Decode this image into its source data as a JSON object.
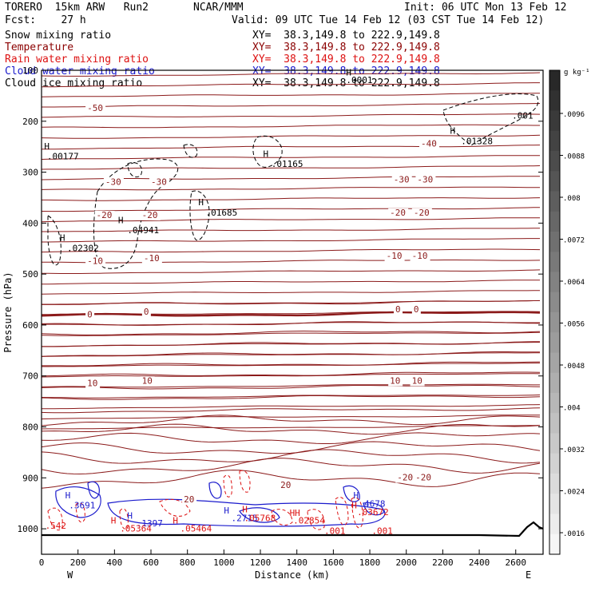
{
  "header": {
    "model": "TORERO  15km ARW   Run2",
    "org": "NCAR/MMM",
    "init": "Init: 06 UTC Mon 13 Feb 12",
    "fcst": "Fcst:    27 h",
    "valid": "Valid: 09 UTC Tue 14 Feb 12 (03 CST Tue 14 Feb 12)"
  },
  "legend": [
    {
      "name": "Snow mixing ratio",
      "color": "#000000",
      "xy": "XY=  38.3,149.8 to 222.9,149.8"
    },
    {
      "name": "Temperature",
      "color": "#8b0000",
      "xy": "XY=  38.3,149.8 to 222.9,149.8"
    },
    {
      "name": "Rain water mixing ratio",
      "color": "#dd1111",
      "xy": "XY=  38.3,149.8 to 222.9,149.8"
    },
    {
      "name": "Cloud water mixing ratio",
      "color": "#1a1acc",
      "xy": "XY=  38.3,149.8 to 222.9,149.8"
    },
    {
      "name": "Cloud ice mixing ratio",
      "color": "#000000",
      "xy": "XY=  38.3,149.8 to 222.9,149.8"
    }
  ],
  "chart_data": {
    "type": "contour-cross-section",
    "xlabel": "Distance (km)",
    "ylabel": "Pressure (hPa)",
    "xlim": [
      0,
      2750
    ],
    "ylim": [
      1050,
      100
    ],
    "x_ticks": [
      0,
      200,
      400,
      600,
      800,
      1000,
      1200,
      1400,
      1600,
      1800,
      2000,
      2200,
      2400,
      2600
    ],
    "y_ticks": [
      200,
      300,
      400,
      500,
      600,
      700,
      800,
      900,
      1000
    ],
    "y_tick_top": "100",
    "x_end_labels": {
      "left": "W",
      "right": "E"
    },
    "colorbar": {
      "unit": "g kg⁻¹",
      "ticks": [
        ".0096",
        ".0088",
        ".008",
        ".0072",
        ".0064",
        ".0056",
        ".0048",
        ".004",
        ".0032",
        ".0024",
        ".0016"
      ]
    },
    "temperature_labels": [
      {
        "text": "-50",
        "x": 250,
        "p": 180
      },
      {
        "text": "-40",
        "x": 2080,
        "p": 250
      },
      {
        "text": "-30",
        "x": 350,
        "p": 325
      },
      {
        "text": "-30",
        "x": 600,
        "p": 325
      },
      {
        "text": "-30",
        "x": 1930,
        "p": 320
      },
      {
        "text": "-30",
        "x": 2060,
        "p": 320
      },
      {
        "text": "-20",
        "x": 300,
        "p": 390
      },
      {
        "text": "-20",
        "x": 550,
        "p": 390
      },
      {
        "text": "-20",
        "x": 1910,
        "p": 385
      },
      {
        "text": "-20",
        "x": 2040,
        "p": 385
      },
      {
        "text": "-10",
        "x": 250,
        "p": 480
      },
      {
        "text": "-10",
        "x": 560,
        "p": 475
      },
      {
        "text": "-10",
        "x": 1890,
        "p": 470
      },
      {
        "text": "-10",
        "x": 2030,
        "p": 470
      },
      {
        "text": "0",
        "x": 250,
        "p": 585
      },
      {
        "text": "0",
        "x": 560,
        "p": 580
      },
      {
        "text": "0",
        "x": 1940,
        "p": 575
      },
      {
        "text": "0",
        "x": 2040,
        "p": 575
      },
      {
        "text": "10",
        "x": 250,
        "p": 720
      },
      {
        "text": "10",
        "x": 550,
        "p": 715
      },
      {
        "text": "10",
        "x": 1910,
        "p": 715
      },
      {
        "text": "10",
        "x": 2030,
        "p": 715
      },
      {
        "text": "20",
        "x": 780,
        "p": 948
      },
      {
        "text": "20",
        "x": 1310,
        "p": 920
      },
      {
        "text": "-20",
        "x": 1950,
        "p": 905
      },
      {
        "text": "-20",
        "x": 2050,
        "p": 905
      }
    ],
    "maxima_labels": [
      {
        "text": "H",
        "x": 15,
        "p": 255,
        "color": "#000000"
      },
      {
        "text": ".00177",
        "x": 30,
        "p": 275,
        "color": "#000000"
      },
      {
        "text": "H",
        "x": 1215,
        "p": 270,
        "color": "#000000"
      },
      {
        "text": ".01165",
        "x": 1260,
        "p": 290,
        "color": "#000000"
      },
      {
        "text": "H",
        "x": 2240,
        "p": 225,
        "color": "#000000"
      },
      {
        "text": ".01328",
        "x": 2300,
        "p": 245,
        "color": "#000000"
      },
      {
        "text": ".001",
        "x": 2580,
        "p": 195,
        "color": "#000000"
      },
      {
        "text": "H",
        "x": 1670,
        "p": 110,
        "color": "#000000"
      },
      {
        "text": ".0001",
        "x": 1670,
        "p": 125,
        "color": "#000000"
      },
      {
        "text": "H",
        "x": 420,
        "p": 400,
        "color": "#000000"
      },
      {
        "text": ".04941",
        "x": 470,
        "p": 420,
        "color": "#000000"
      },
      {
        "text": "H",
        "x": 860,
        "p": 365,
        "color": "#000000"
      },
      {
        "text": ".01685",
        "x": 900,
        "p": 385,
        "color": "#000000"
      },
      {
        "text": "H",
        "x": 100,
        "p": 435,
        "color": "#000000"
      },
      {
        "text": ".02302",
        "x": 140,
        "p": 455,
        "color": "#000000"
      },
      {
        "text": "H",
        "x": 130,
        "p": 940,
        "color": "#1a1acc"
      },
      {
        "text": ".3691",
        "x": 150,
        "p": 960,
        "color": "#1a1acc"
      },
      {
        "text": "H",
        "x": 470,
        "p": 980,
        "color": "#1a1acc"
      },
      {
        "text": ".1397",
        "x": 520,
        "p": 995,
        "color": "#1a1acc"
      },
      {
        "text": "H",
        "x": 1000,
        "p": 970,
        "color": "#1a1acc"
      },
      {
        "text": ".2715",
        "x": 1040,
        "p": 985,
        "color": "#1a1acc"
      },
      {
        "text": "H",
        "x": 1710,
        "p": 940,
        "color": "#1a1acc"
      },
      {
        "text": ".4678",
        "x": 1740,
        "p": 957,
        "color": "#1a1acc"
      },
      {
        "text": ".542",
        "x": 20,
        "p": 1000,
        "color": "#dd1111"
      },
      {
        "text": "H",
        "x": 380,
        "p": 990,
        "color": "#dd1111"
      },
      {
        "text": ".05364",
        "x": 430,
        "p": 1005,
        "color": "#dd1111"
      },
      {
        "text": "H",
        "x": 720,
        "p": 990,
        "color": "#dd1111"
      },
      {
        "text": ".05464",
        "x": 760,
        "p": 1005,
        "color": "#dd1111"
      },
      {
        "text": "H",
        "x": 1100,
        "p": 968,
        "color": "#dd1111"
      },
      {
        "text": ".05768",
        "x": 1110,
        "p": 985,
        "color": "#dd1111"
      },
      {
        "text": "HH",
        "x": 1360,
        "p": 975,
        "color": "#dd1111"
      },
      {
        "text": ".02854",
        "x": 1380,
        "p": 990,
        "color": "#dd1111"
      },
      {
        "text": "H",
        "x": 1700,
        "p": 960,
        "color": "#dd1111"
      },
      {
        "text": ".03672",
        "x": 1730,
        "p": 973,
        "color": "#dd1111"
      },
      {
        "text": ".001",
        "x": 1550,
        "p": 1010,
        "color": "#dd1111"
      },
      {
        "text": ".001",
        "x": 1810,
        "p": 1010,
        "color": "#dd1111"
      }
    ]
  }
}
